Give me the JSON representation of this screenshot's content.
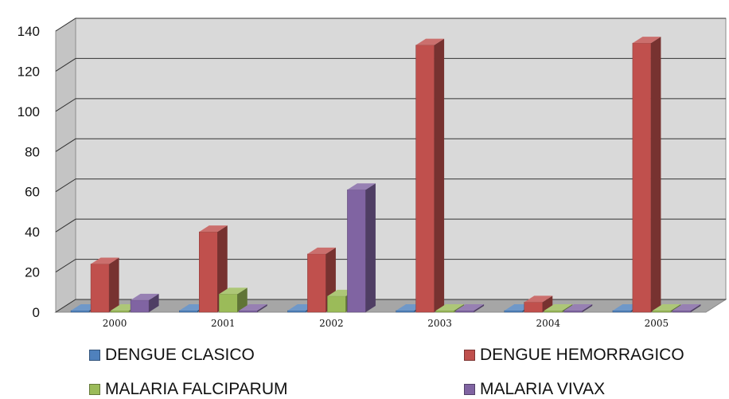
{
  "chart_data": {
    "type": "bar",
    "categories": [
      "2000",
      "2001",
      "2002",
      "2003",
      "2004",
      "2005"
    ],
    "series": [
      {
        "name": "DENGUE CLASICO",
        "color": "#4f81bd",
        "values": [
          0,
          0,
          0,
          0,
          0,
          0
        ]
      },
      {
        "name": "DENGUE HEMORRAGICO",
        "color": "#c0504d",
        "values": [
          24,
          40,
          29,
          133,
          5,
          134
        ]
      },
      {
        "name": "MALARIA FALCIPARUM",
        "color": "#9bbb59",
        "values": [
          0,
          9,
          8,
          0,
          0,
          0
        ]
      },
      {
        "name": "MALARIA VIVAX",
        "color": "#8064a2",
        "values": [
          6,
          0,
          61,
          0,
          0,
          0
        ]
      }
    ],
    "title": "",
    "xlabel": "",
    "ylabel": "",
    "ylim": [
      0,
      140
    ],
    "yticks": [
      "0",
      "20",
      "40",
      "60",
      "80",
      "100",
      "120",
      "140"
    ],
    "grid": true,
    "legend_position": "bottom",
    "style": "3d-clustered-column"
  }
}
